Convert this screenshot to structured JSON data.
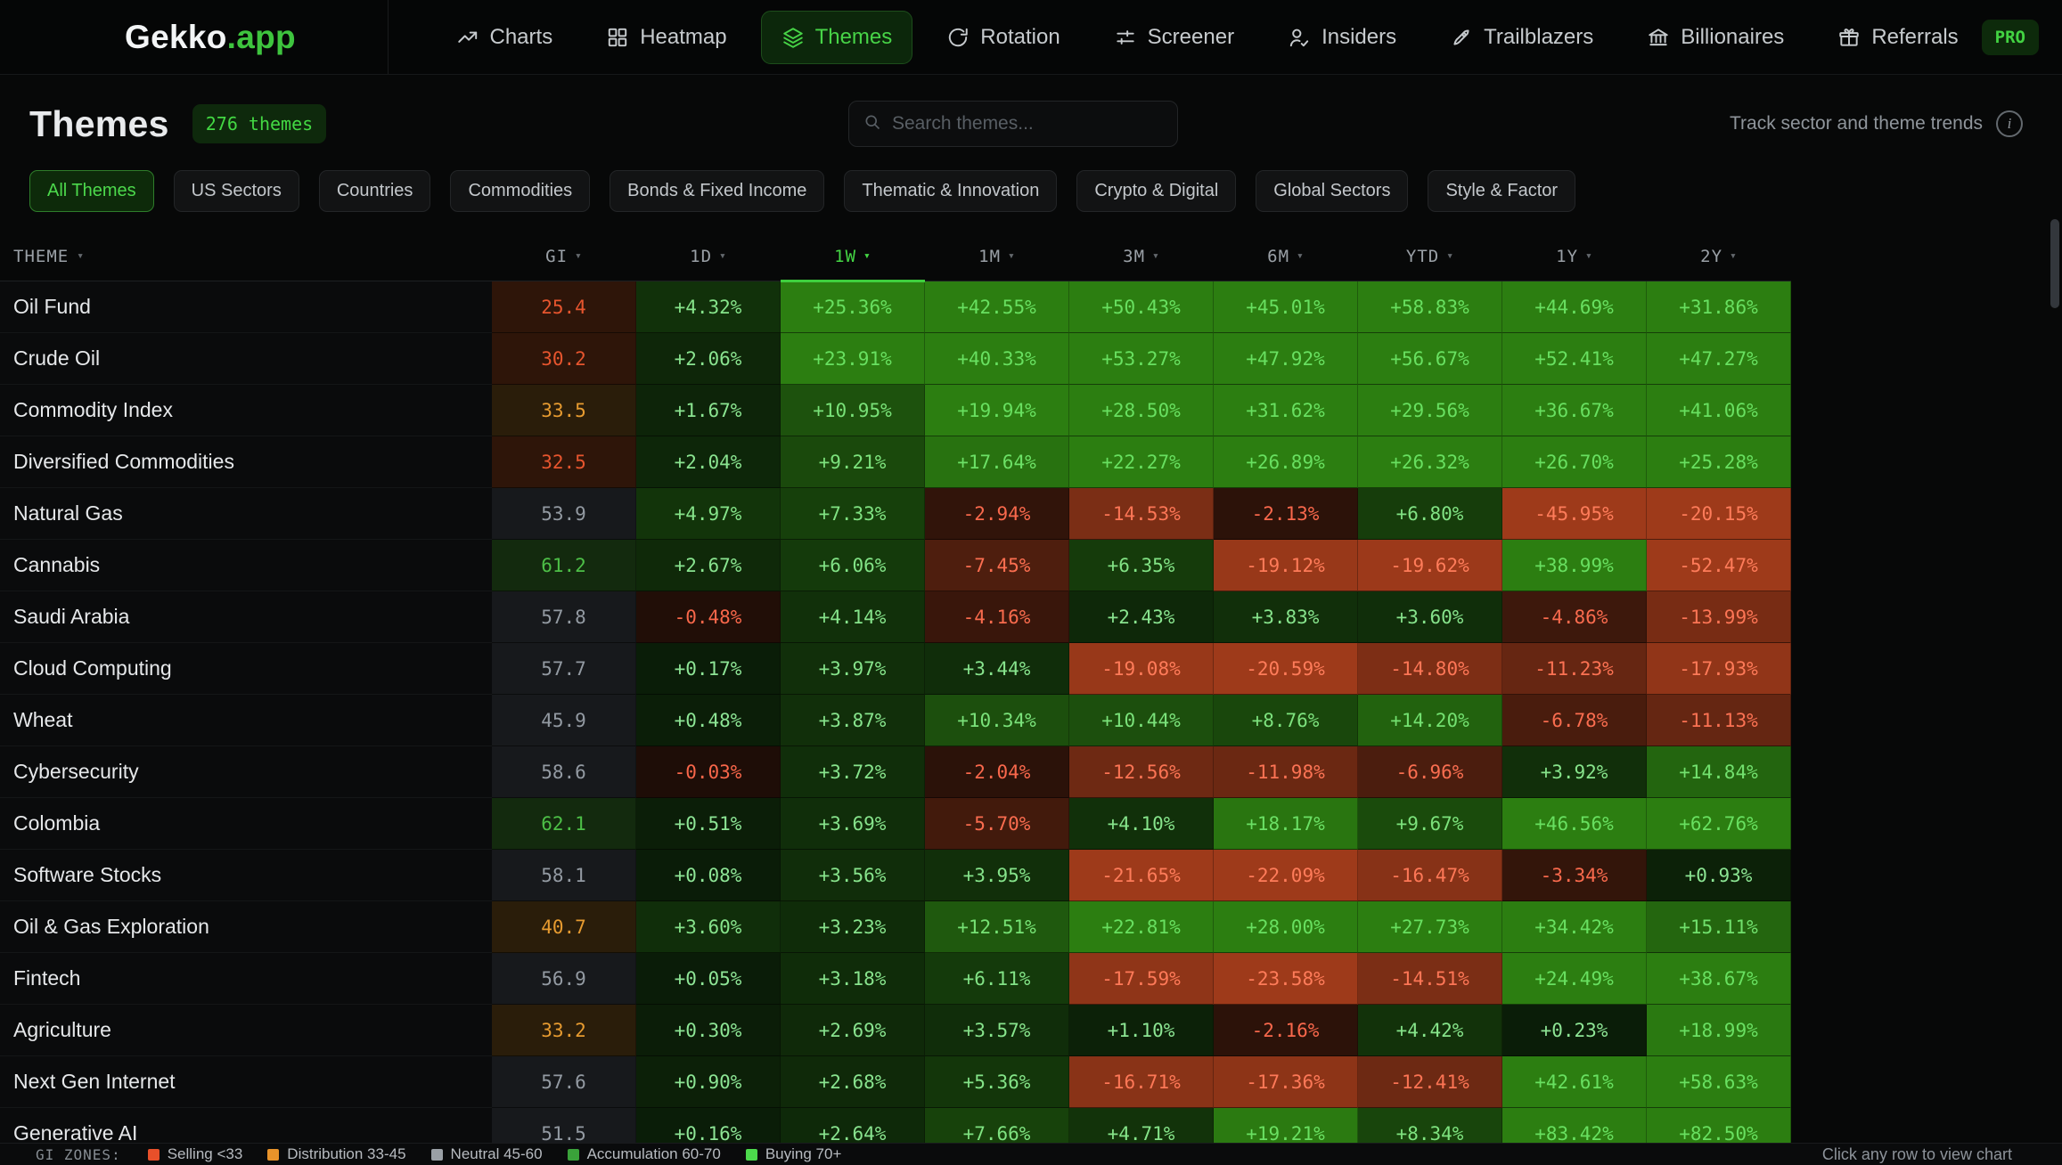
{
  "nav": {
    "logo_main": "Gekko",
    "logo_suffix": ".app",
    "items": [
      {
        "label": "Charts",
        "icon": "trending-up",
        "active": false
      },
      {
        "label": "Heatmap",
        "icon": "grid",
        "active": false
      },
      {
        "label": "Themes",
        "icon": "layers",
        "active": true
      },
      {
        "label": "Rotation",
        "icon": "rotate",
        "active": false
      },
      {
        "label": "Screener",
        "icon": "sliders",
        "active": false
      },
      {
        "label": "Insiders",
        "icon": "user-check",
        "active": false
      },
      {
        "label": "Trailblazers",
        "icon": "rocket",
        "active": false
      },
      {
        "label": "Billionaires",
        "icon": "bank",
        "active": false
      },
      {
        "label": "Referrals",
        "icon": "gift",
        "active": false
      }
    ],
    "pro_label": "PRO"
  },
  "header": {
    "title": "Themes",
    "badge": "276 themes",
    "search_placeholder": "Search themes...",
    "tagline": "Track sector and theme trends"
  },
  "filters": [
    {
      "label": "All Themes",
      "active": true
    },
    {
      "label": "US Sectors",
      "active": false
    },
    {
      "label": "Countries",
      "active": false
    },
    {
      "label": "Commodities",
      "active": false
    },
    {
      "label": "Bonds & Fixed Income",
      "active": false
    },
    {
      "label": "Thematic & Innovation",
      "active": false
    },
    {
      "label": "Crypto & Digital",
      "active": false
    },
    {
      "label": "Global Sectors",
      "active": false
    },
    {
      "label": "Style & Factor",
      "active": false
    }
  ],
  "table": {
    "theme_col_label": "THEME",
    "columns": [
      "GI",
      "1D",
      "1W",
      "1M",
      "3M",
      "6M",
      "YTD",
      "1Y",
      "2Y"
    ],
    "sorted_column": "1W",
    "rows": [
      {
        "name": "Oil Fund",
        "gi": 25.4,
        "values": [
          4.32,
          25.36,
          42.55,
          50.43,
          45.01,
          58.83,
          44.69,
          31.86
        ]
      },
      {
        "name": "Crude Oil",
        "gi": 30.2,
        "values": [
          2.06,
          23.91,
          40.33,
          53.27,
          47.92,
          56.67,
          52.41,
          47.27
        ]
      },
      {
        "name": "Commodity Index",
        "gi": 33.5,
        "values": [
          1.67,
          10.95,
          19.94,
          28.5,
          31.62,
          29.56,
          36.67,
          41.06
        ]
      },
      {
        "name": "Diversified Commodities",
        "gi": 32.5,
        "values": [
          2.04,
          9.21,
          17.64,
          22.27,
          26.89,
          26.32,
          26.7,
          25.28
        ]
      },
      {
        "name": "Natural Gas",
        "gi": 53.9,
        "values": [
          4.97,
          7.33,
          -2.94,
          -14.53,
          -2.13,
          6.8,
          -45.95,
          -20.15
        ]
      },
      {
        "name": "Cannabis",
        "gi": 61.2,
        "values": [
          2.67,
          6.06,
          -7.45,
          6.35,
          -19.12,
          -19.62,
          38.99,
          -52.47
        ]
      },
      {
        "name": "Saudi Arabia",
        "gi": 57.8,
        "values": [
          -0.48,
          4.14,
          -4.16,
          2.43,
          3.83,
          3.6,
          -4.86,
          -13.99
        ]
      },
      {
        "name": "Cloud Computing",
        "gi": 57.7,
        "values": [
          0.17,
          3.97,
          3.44,
          -19.08,
          -20.59,
          -14.8,
          -11.23,
          -17.93
        ]
      },
      {
        "name": "Wheat",
        "gi": 45.9,
        "values": [
          0.48,
          3.87,
          10.34,
          10.44,
          8.76,
          14.2,
          -6.78,
          -11.13
        ]
      },
      {
        "name": "Cybersecurity",
        "gi": 58.6,
        "values": [
          -0.03,
          3.72,
          -2.04,
          -12.56,
          -11.98,
          -6.96,
          3.92,
          14.84
        ]
      },
      {
        "name": "Colombia",
        "gi": 62.1,
        "values": [
          0.51,
          3.69,
          -5.7,
          4.1,
          18.17,
          9.67,
          46.56,
          62.76
        ]
      },
      {
        "name": "Software Stocks",
        "gi": 58.1,
        "values": [
          0.08,
          3.56,
          3.95,
          -21.65,
          -22.09,
          -16.47,
          -3.34,
          0.93
        ]
      },
      {
        "name": "Oil & Gas Exploration",
        "gi": 40.7,
        "values": [
          3.6,
          3.23,
          12.51,
          22.81,
          28.0,
          27.73,
          34.42,
          15.11
        ]
      },
      {
        "name": "Fintech",
        "gi": 56.9,
        "values": [
          0.05,
          3.18,
          6.11,
          -17.59,
          -23.58,
          -14.51,
          24.49,
          38.67
        ]
      },
      {
        "name": "Agriculture",
        "gi": 33.2,
        "values": [
          0.3,
          2.69,
          3.57,
          1.1,
          -2.16,
          4.42,
          0.23,
          18.99
        ]
      },
      {
        "name": "Next Gen Internet",
        "gi": 57.6,
        "values": [
          0.9,
          2.68,
          5.36,
          -16.71,
          -17.36,
          -12.41,
          42.61,
          58.63
        ]
      },
      {
        "name": "Generative AI",
        "gi": 51.5,
        "values": [
          0.16,
          2.64,
          7.66,
          4.71,
          19.21,
          8.34,
          83.42,
          82.5
        ]
      }
    ]
  },
  "legend": {
    "label": "GI ZONES:",
    "zones": [
      {
        "label": "Selling <33",
        "color": "#e8502a"
      },
      {
        "label": "Distribution 33-45",
        "color": "#e8932a"
      },
      {
        "label": "Neutral 45-60",
        "color": "#9aa0a6"
      },
      {
        "label": "Accumulation 60-70",
        "color": "#3aa23a"
      },
      {
        "label": "Buying 70+",
        "color": "#4cd94c"
      }
    ],
    "hint": "Click any row to view chart"
  },
  "colors": {
    "accent_green": "#45d945",
    "heat": {
      "scale_max": 20,
      "pos_bg_low": "#0a1c08",
      "pos_bg_high": "#2c7e11",
      "pos_text_low": "#8ee596",
      "pos_text_high": "#68e060",
      "neg_bg_low": "#1e0d07",
      "neg_bg_high": "#9e3a1a",
      "neg_text_low": "#f8664a",
      "neg_text_high": "#ff7c5a"
    },
    "gi_zones": {
      "selling": {
        "text": "#e6552e",
        "bg": "#2e1509"
      },
      "distribution": {
        "text": "#e79b30",
        "bg": "#2a1d0a"
      },
      "neutral": {
        "text": "#939aa2",
        "bg": "#17191c"
      },
      "accumulation": {
        "text": "#4dbf47",
        "bg": "#132a0e"
      },
      "buying": {
        "text": "#4ce04c",
        "bg": "#143310"
      }
    }
  }
}
